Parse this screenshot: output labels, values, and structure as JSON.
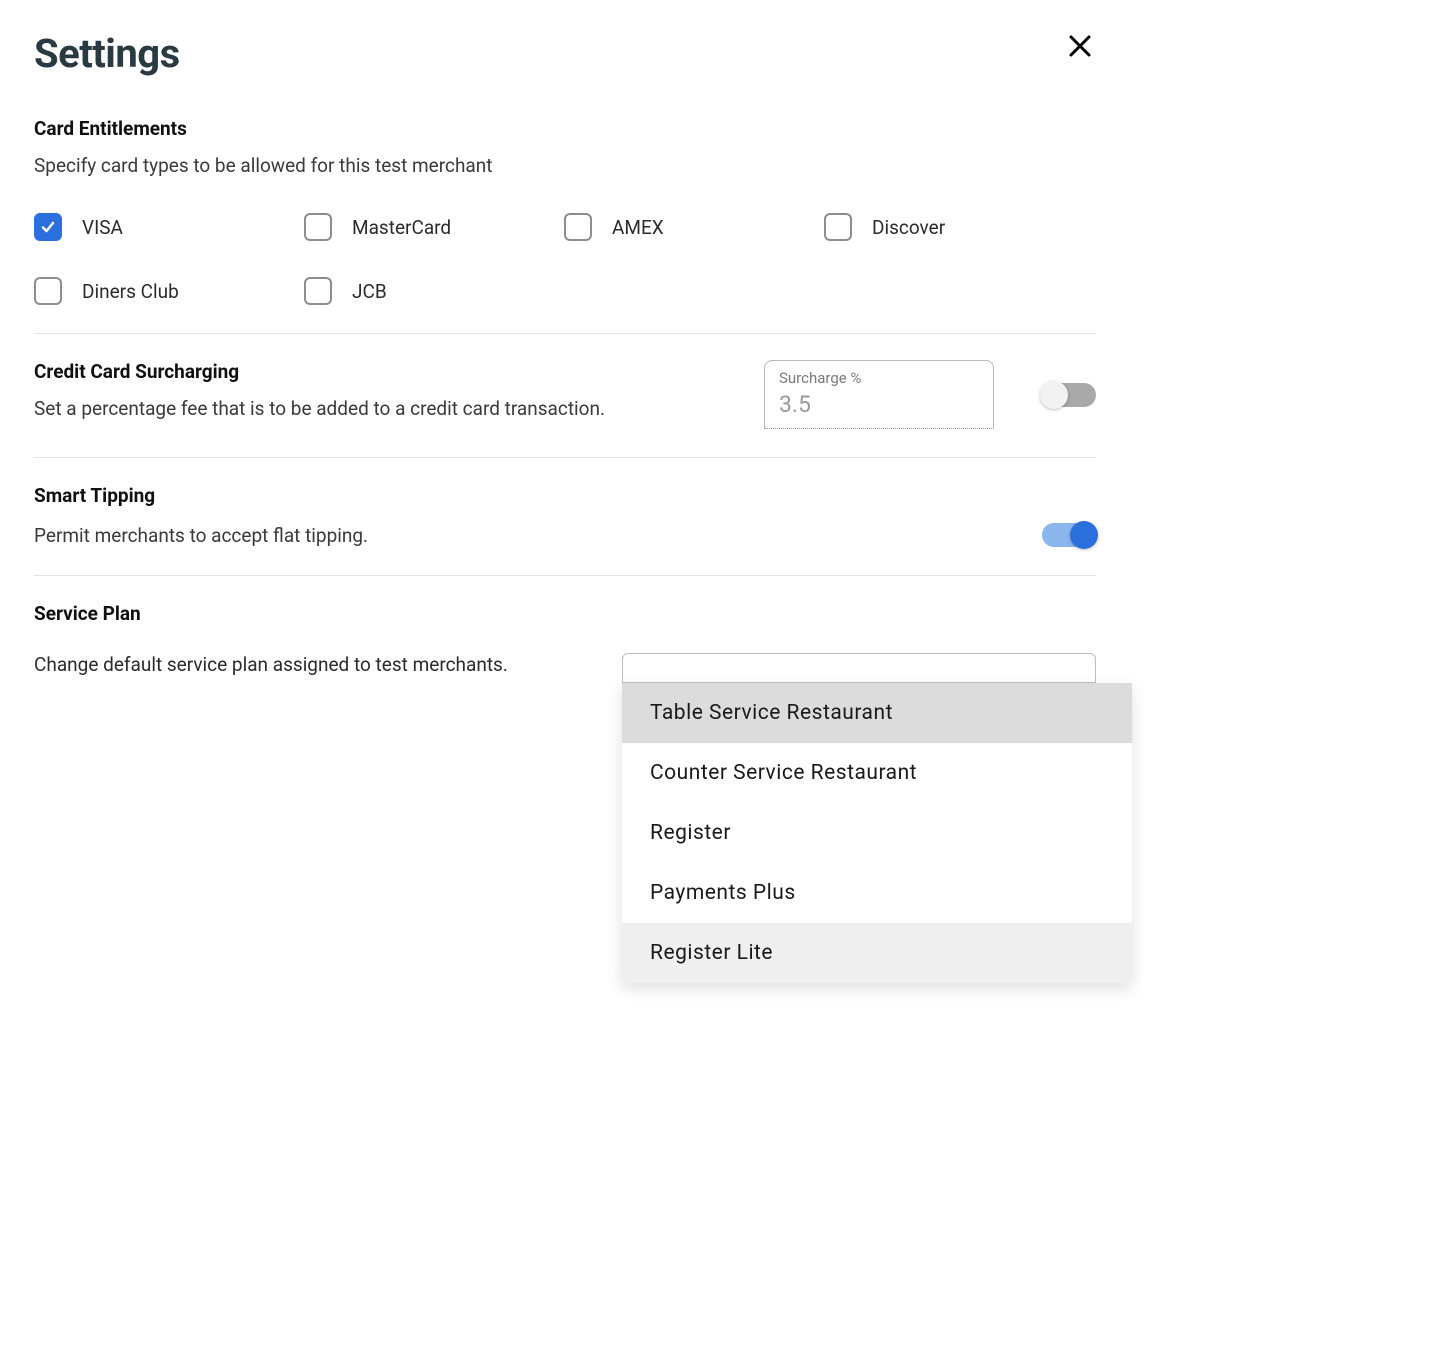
{
  "colors": {
    "accent": "#2a6fdb",
    "accent_light": "#8ab5ed",
    "text_primary": "#1a1a1a",
    "text_heading": "#2a3a42",
    "text_muted": "#7a7a7a",
    "border": "#bdbdbd",
    "divider": "#e3e3e3",
    "toggle_off_track": "#a9a9a9",
    "dropdown_highlight": "#dcdcdc",
    "dropdown_hover": "#efefef"
  },
  "header": {
    "title": "Settings"
  },
  "sections": {
    "card_entitlements": {
      "title": "Card Entitlements",
      "description": "Specify card types to be allowed for this test merchant",
      "options": [
        {
          "label": "VISA",
          "checked": true
        },
        {
          "label": "MasterCard",
          "checked": false
        },
        {
          "label": "AMEX",
          "checked": false
        },
        {
          "label": "Discover",
          "checked": false
        },
        {
          "label": "Diners Club",
          "checked": false
        },
        {
          "label": "JCB",
          "checked": false
        }
      ]
    },
    "surcharging": {
      "title": "Credit Card Surcharging",
      "description": "Set a percentage fee that is to be added to a credit card transaction.",
      "input_label": "Surcharge %",
      "input_value": "3.5",
      "toggle_on": false
    },
    "smart_tipping": {
      "title": "Smart Tipping",
      "description": "Permit merchants to accept flat tipping.",
      "toggle_on": true
    },
    "service_plan": {
      "title": "Service Plan",
      "description": "Change default service plan assigned to test merchants.",
      "options": [
        {
          "label": "Table Service Restaurant",
          "state": "highlight"
        },
        {
          "label": "Counter Service Restaurant",
          "state": ""
        },
        {
          "label": "Register",
          "state": ""
        },
        {
          "label": "Payments Plus",
          "state": ""
        },
        {
          "label": "Register Lite",
          "state": "hover"
        }
      ]
    }
  }
}
